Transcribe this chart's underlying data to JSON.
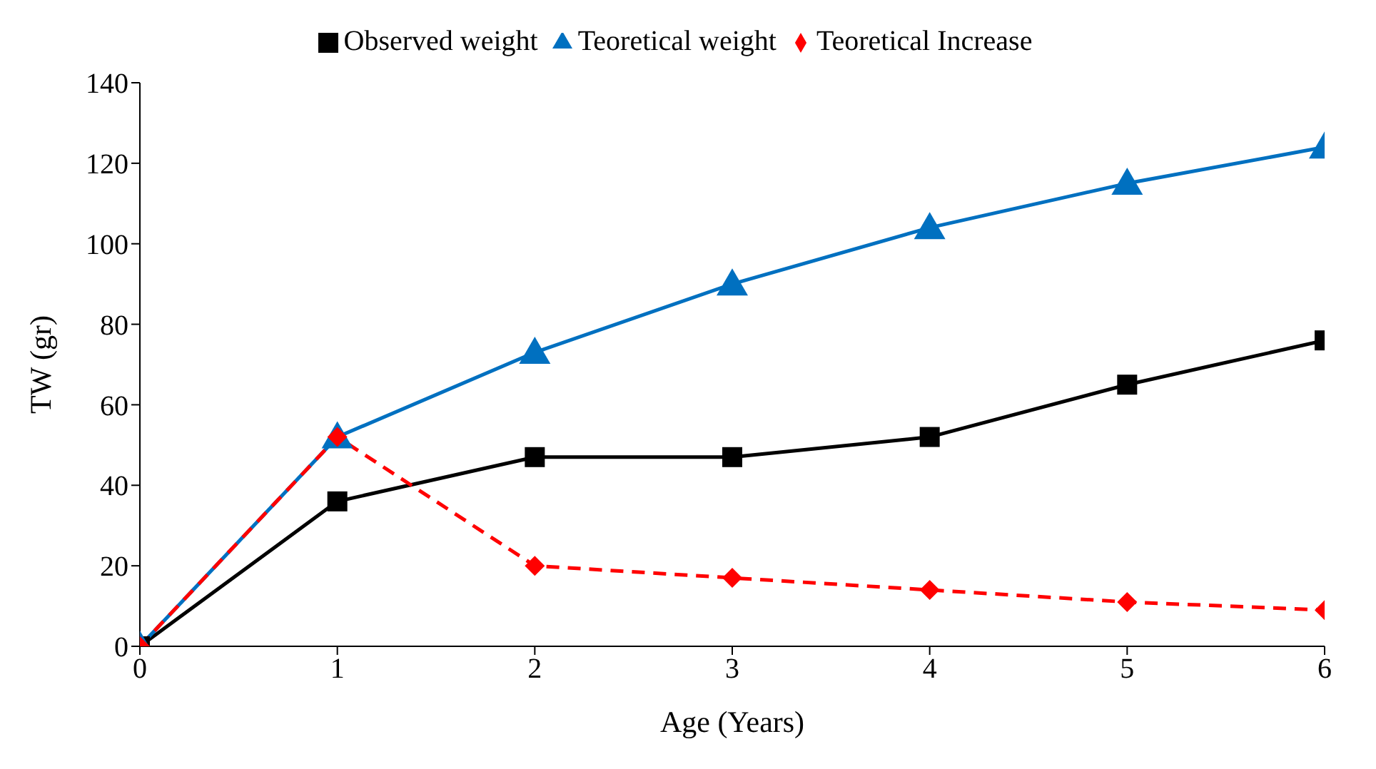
{
  "chart_data": {
    "type": "line",
    "xlabel": "Age (Years)",
    "ylabel": "TW (gr)",
    "x": [
      0,
      1,
      2,
      3,
      4,
      5,
      6
    ],
    "series": [
      {
        "name": "Observed weight",
        "color": "#000000",
        "marker": "square",
        "line_style": "solid",
        "values": [
          0,
          36,
          47,
          47,
          52,
          65,
          76
        ]
      },
      {
        "name": "Teoretical weight",
        "color": "#0070c0",
        "marker": "triangle",
        "line_style": "solid",
        "values": [
          0,
          52,
          73,
          90,
          104,
          115,
          124
        ]
      },
      {
        "name": "Teoretical Increase",
        "color": "#ff0000",
        "marker": "diamond",
        "line_style": "dashed",
        "values": [
          0,
          52,
          20,
          17,
          14,
          11,
          9
        ]
      }
    ],
    "xlim": [
      0,
      6
    ],
    "xticks": [
      0,
      1,
      2,
      3,
      4,
      5,
      6
    ],
    "ylim": [
      0,
      140
    ],
    "yticks": [
      0,
      20,
      40,
      60,
      80,
      100,
      120,
      140
    ],
    "legend": "top"
  }
}
